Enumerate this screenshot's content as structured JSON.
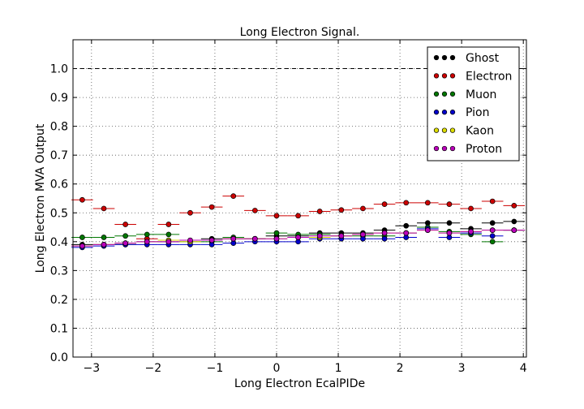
{
  "chart_data": {
    "type": "scatter",
    "title": "Long Electron Signal.",
    "xlabel": "Long Electron EcalPIDe",
    "ylabel": "Long Electron MVA Output",
    "xlim": [
      -3.3,
      4.05
    ],
    "ylim": [
      0.0,
      1.1
    ],
    "xticks": [
      -3,
      -2,
      -1,
      0,
      1,
      2,
      3,
      4
    ],
    "yticks": [
      0.0,
      0.1,
      0.2,
      0.3,
      0.4,
      0.5,
      0.6,
      0.7,
      0.8,
      0.9,
      1.0
    ],
    "ytick_labels": [
      "0.0",
      "0.1",
      "0.2",
      "0.3",
      "0.4",
      "0.5",
      "0.6",
      "0.7",
      "0.8",
      "0.9",
      "1.0"
    ],
    "grid": true,
    "legend_position": "top-right",
    "reference_line": 1.0,
    "bin_half_width": 0.175,
    "x": [
      -3.15,
      -2.8,
      -2.45,
      -2.1,
      -1.75,
      -1.4,
      -1.05,
      -0.7,
      -0.35,
      0.0,
      0.35,
      0.7,
      1.05,
      1.4,
      1.75,
      2.1,
      2.45,
      2.8,
      3.15,
      3.5,
      3.85
    ],
    "series": [
      {
        "name": "Ghost",
        "color": "#000000",
        "values": [
          0.39,
          0.39,
          0.39,
          0.4,
          0.4,
          0.4,
          0.41,
          0.41,
          0.41,
          0.42,
          0.42,
          0.43,
          0.43,
          0.43,
          0.44,
          0.455,
          0.465,
          0.465,
          0.445,
          0.465,
          0.47
        ]
      },
      {
        "name": "Electron",
        "color": "#cc0000",
        "values": [
          0.545,
          0.515,
          0.46,
          0.41,
          0.46,
          0.5,
          0.52,
          0.558,
          0.508,
          0.49,
          0.49,
          0.505,
          0.51,
          0.515,
          0.53,
          0.535,
          0.535,
          0.53,
          0.515,
          0.54,
          0.525
        ]
      },
      {
        "name": "Muon",
        "color": "#007700",
        "values": [
          0.415,
          0.415,
          0.42,
          0.425,
          0.425,
          0.4,
          0.4,
          0.415,
          0.41,
          0.43,
          0.425,
          0.425,
          0.42,
          0.42,
          0.42,
          0.43,
          0.45,
          0.435,
          0.425,
          0.4,
          0.44
        ]
      },
      {
        "name": "Pion",
        "color": "#0000cc",
        "values": [
          0.38,
          0.385,
          0.39,
          0.39,
          0.39,
          0.39,
          0.39,
          0.395,
          0.4,
          0.4,
          0.4,
          0.41,
          0.41,
          0.41,
          0.41,
          0.415,
          0.445,
          0.415,
          0.43,
          0.42,
          0.44
        ]
      },
      {
        "name": "Kaon",
        "color": "#dddd00",
        "values": [
          0.385,
          0.39,
          0.395,
          0.4,
          0.405,
          0.4,
          0.405,
          0.41,
          0.41,
          0.41,
          0.415,
          0.415,
          0.42,
          0.425,
          0.43,
          0.43,
          0.44,
          0.43,
          0.435,
          0.44,
          0.44
        ]
      },
      {
        "name": "Proton",
        "color": "#bb00bb",
        "values": [
          0.385,
          0.39,
          0.395,
          0.4,
          0.4,
          0.405,
          0.405,
          0.41,
          0.41,
          0.41,
          0.415,
          0.42,
          0.42,
          0.425,
          0.43,
          0.43,
          0.44,
          0.43,
          0.435,
          0.44,
          0.44
        ]
      }
    ]
  }
}
